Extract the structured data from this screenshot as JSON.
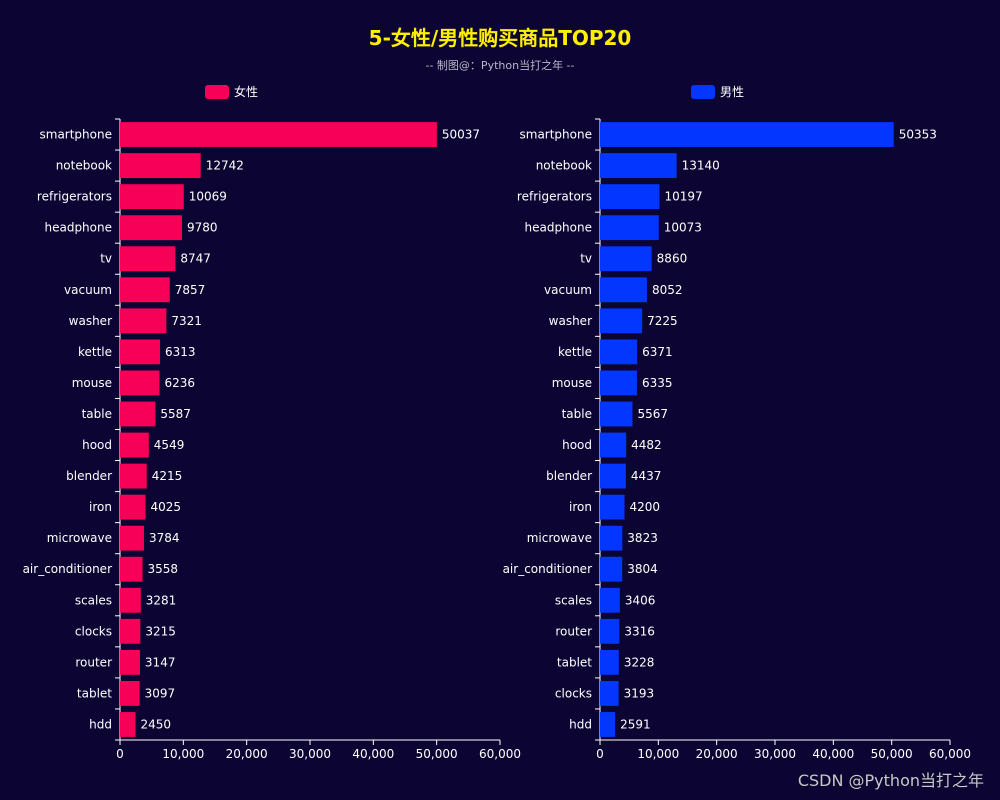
{
  "title": "5-女性/男性购买商品TOP20",
  "subtitle": "-- 制图@：Python当打之年 --",
  "watermark": "CSDN @Python当打之年",
  "colors": {
    "female": "#f70058",
    "male": "#0336ff",
    "background": "#0c0533",
    "title": "#ffef00"
  },
  "chart_data": [
    {
      "type": "bar",
      "orientation": "horizontal",
      "series_name": "女性",
      "color": "#f70058",
      "categories": [
        "smartphone",
        "notebook",
        "refrigerators",
        "headphone",
        "tv",
        "vacuum",
        "washer",
        "kettle",
        "mouse",
        "table",
        "hood",
        "blender",
        "iron",
        "microwave",
        "air_conditioner",
        "scales",
        "clocks",
        "router",
        "tablet",
        "hdd"
      ],
      "values": [
        50037,
        12742,
        10069,
        9780,
        8747,
        7857,
        7321,
        6313,
        6236,
        5587,
        4549,
        4215,
        4025,
        3784,
        3558,
        3281,
        3215,
        3147,
        3097,
        2450
      ],
      "xlim": [
        0,
        60000
      ],
      "xticks": [
        "0",
        "10,000",
        "20,000",
        "30,000",
        "40,000",
        "50,000",
        "60,000"
      ],
      "legend": "top"
    },
    {
      "type": "bar",
      "orientation": "horizontal",
      "series_name": "男性",
      "color": "#0336ff",
      "categories": [
        "smartphone",
        "notebook",
        "refrigerators",
        "headphone",
        "tv",
        "vacuum",
        "washer",
        "kettle",
        "mouse",
        "table",
        "hood",
        "blender",
        "iron",
        "microwave",
        "air_conditioner",
        "scales",
        "router",
        "tablet",
        "clocks",
        "hdd"
      ],
      "values": [
        50353,
        13140,
        10197,
        10073,
        8860,
        8052,
        7225,
        6371,
        6335,
        5567,
        4482,
        4437,
        4200,
        3823,
        3804,
        3406,
        3316,
        3228,
        3193,
        2591
      ],
      "xlim": [
        0,
        60000
      ],
      "xticks": [
        "0",
        "10,000",
        "20,000",
        "30,000",
        "40,000",
        "50,000",
        "60,000"
      ],
      "legend": "top"
    }
  ]
}
